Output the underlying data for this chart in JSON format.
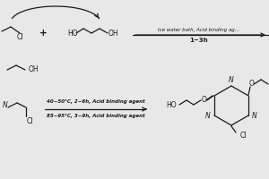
{
  "bg": "#e8e8e8",
  "lc": "#1a1a1a",
  "tc": "#1a1a1a",
  "fs": 5.5,
  "lw": 0.9,
  "arrow1_above": "Ice water bath, Acid binding ag...",
  "arrow1_below": "1~3h",
  "arrow2_above": "40~50°C, 2~6h, Acid binding agent",
  "arrow2_below": "85~95°C, 3~9h, Acid binding agent"
}
